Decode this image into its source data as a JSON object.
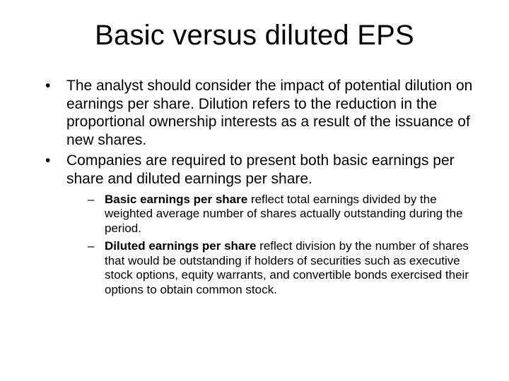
{
  "title": "Basic versus diluted EPS",
  "bullets": [
    {
      "text": "The analyst should consider the impact of potential dilution on earnings per share.  Dilution refers to the reduction in the proportional ownership interests as a result of the issuance of new shares."
    },
    {
      "text": " Companies are required to present both basic earnings per share and diluted earnings per share.",
      "sub": [
        {
          "bold": "Basic earnings per share",
          "rest": " reflect total earnings divided by the weighted average number of shares actually outstanding during the period."
        },
        {
          "bold": "Diluted earnings per share",
          "rest": " reflect division by the number of shares that would be outstanding if holders of securities such as executive stock options, equity warrants, and convertible bonds exercised their options to obtain common stock."
        }
      ]
    }
  ],
  "style": {
    "background": "#ffffff",
    "text_color": "#000000",
    "title_fontsize": 40,
    "body_fontsize": 21,
    "sub_fontsize": 17
  }
}
